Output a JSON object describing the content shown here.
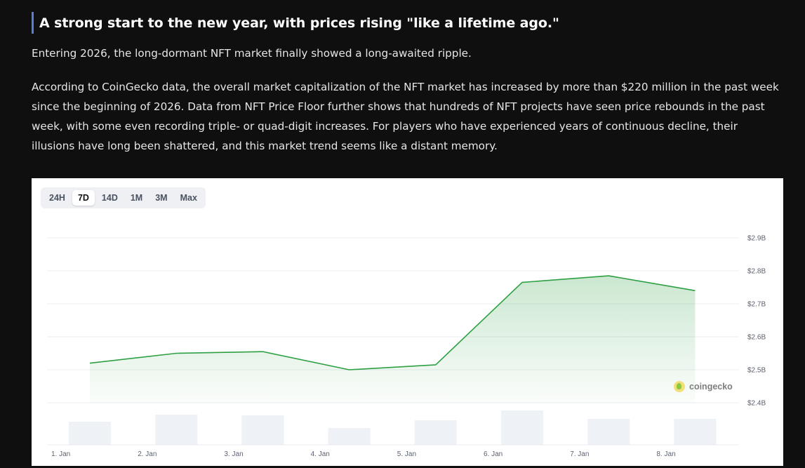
{
  "article": {
    "heading": "A strong start to the new year, with prices rising \"like a lifetime ago.\"",
    "para1": "Entering 2026, the long-dormant NFT market finally showed a long-awaited ripple.",
    "para2": "According to CoinGecko data, the overall market capitalization of the NFT market has increased by more than $220 million in the past week since the beginning of 2026. Data from NFT Price Floor further shows that hundreds of NFT projects have seen price rebounds in the past week, with some even recording triple- or quad-digit increases. For players who have experienced years of continuous decline, their illusions have long been shattered, and this market trend seems like a distant memory."
  },
  "range_selector": {
    "options": [
      "24H",
      "7D",
      "14D",
      "1M",
      "3M",
      "Max"
    ],
    "active": "7D"
  },
  "watermark": {
    "text": "coingecko",
    "icon": "gecko-icon"
  },
  "colors": {
    "line": "#2ea043",
    "volume_bar": "#eef1f6",
    "heading_accent": "#5b7bd5"
  },
  "chart_data": {
    "type": "line",
    "x": [
      "1. Jan",
      "2. Jan",
      "3. Jan",
      "4. Jan",
      "5. Jan",
      "6. Jan",
      "7. Jan",
      "8. Jan"
    ],
    "x_tick_labels": [
      "1. Jan",
      "2. Jan",
      "3. Jan",
      "4. Jan",
      "5. Jan",
      "6. Jan",
      "7. Jan",
      "8. Jan"
    ],
    "series": [
      {
        "values": [
          2.52,
          2.55,
          2.555,
          2.5,
          2.515,
          2.765,
          2.785,
          2.74
        ]
      }
    ],
    "volume": [
      0.33,
      0.43,
      0.42,
      0.24,
      0.35,
      0.49,
      0.37,
      0.37
    ],
    "y_tick_labels": [
      "$2.9B",
      "$2.8B",
      "$2.7B",
      "$2.6B",
      "$2.5B",
      "$2.4B"
    ],
    "y_ticks": [
      2.9,
      2.8,
      2.7,
      2.6,
      2.5,
      2.4
    ],
    "ylim": [
      2.4,
      2.9
    ],
    "y_unit": "USD billions",
    "grid": true,
    "area_fill": true
  }
}
